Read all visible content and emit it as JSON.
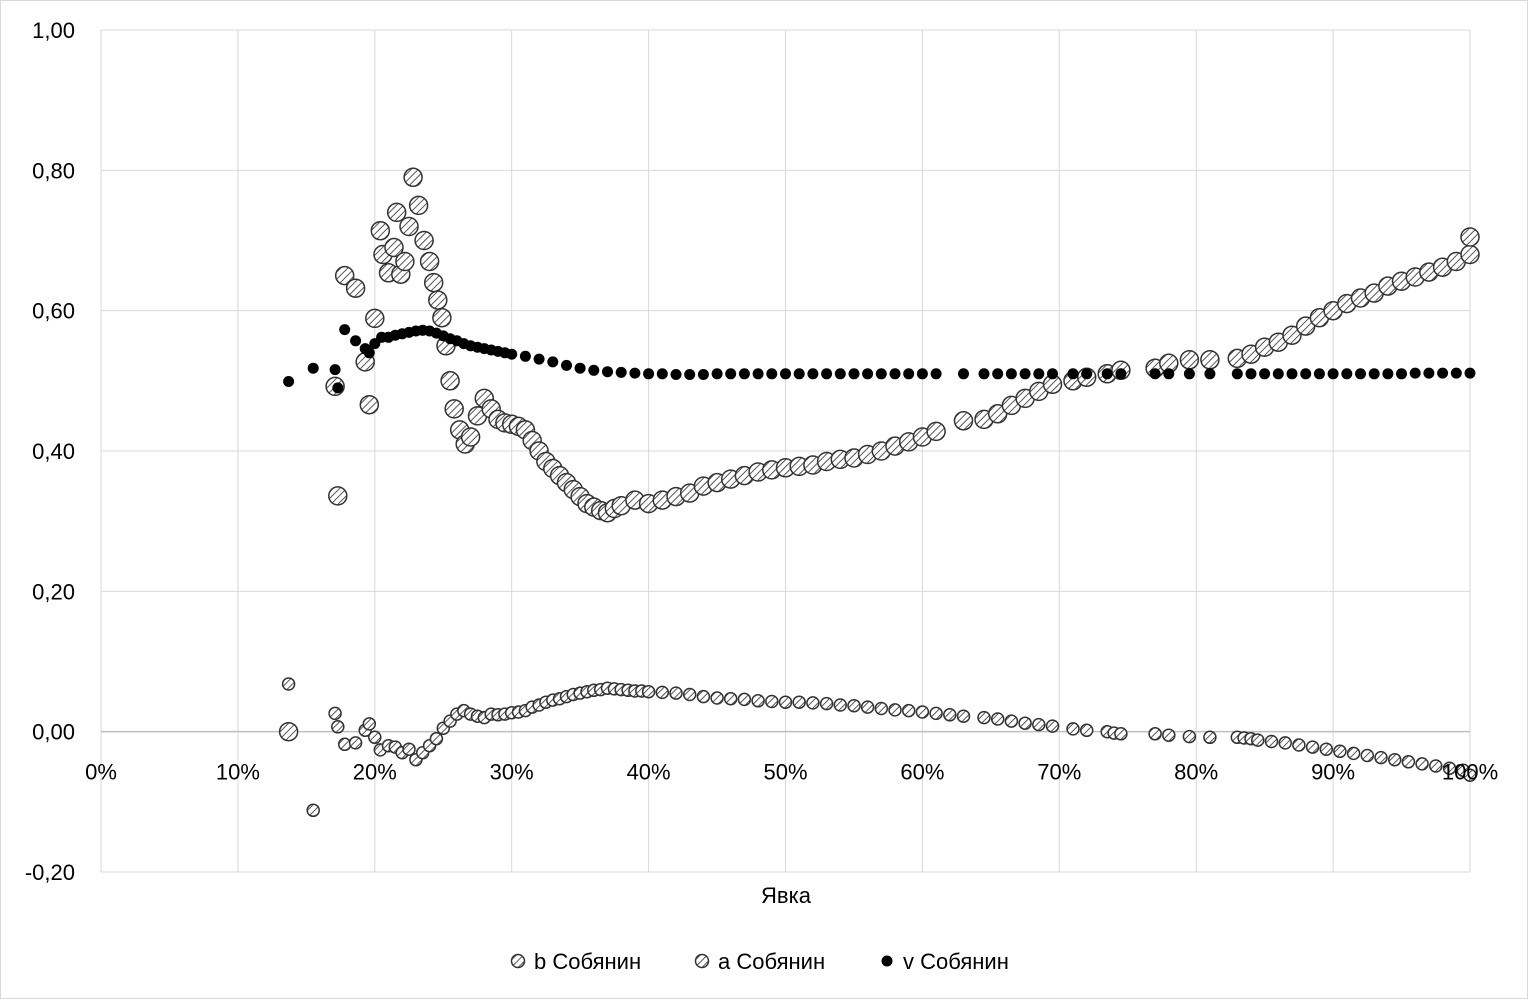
{
  "chart_data": {
    "type": "scatter",
    "title": "",
    "xlabel": "Явка",
    "ylabel": "",
    "xlim": [
      0,
      1
    ],
    "ylim": [
      -0.2,
      1.0
    ],
    "x_ticks": [
      0,
      0.1,
      0.2,
      0.3,
      0.4,
      0.5,
      0.6,
      0.7,
      0.8,
      0.9,
      1.0
    ],
    "x_tick_labels": [
      "0%",
      "10%",
      "20%",
      "30%",
      "40%",
      "50%",
      "60%",
      "70%",
      "80%",
      "90%",
      "100%"
    ],
    "y_ticks": [
      -0.2,
      0,
      0.2,
      0.4,
      0.6,
      0.8,
      1.0
    ],
    "y_tick_labels": [
      "-0,20",
      "0,00",
      "0,20",
      "0,40",
      "0,60",
      "0,80",
      "1,00"
    ],
    "grid": true,
    "legend_position": "bottom",
    "series": [
      {
        "name": "b Собянин",
        "marker": "hatched-small",
        "points": [
          [
            0.137,
            0.068
          ],
          [
            0.155,
            -0.112
          ],
          [
            0.171,
            0.026
          ],
          [
            0.173,
            0.007
          ],
          [
            0.178,
            -0.018
          ],
          [
            0.186,
            -0.016
          ],
          [
            0.193,
            0.002
          ],
          [
            0.196,
            0.011
          ],
          [
            0.2,
            -0.008
          ],
          [
            0.204,
            -0.026
          ],
          [
            0.21,
            -0.02
          ],
          [
            0.215,
            -0.022
          ],
          [
            0.22,
            -0.03
          ],
          [
            0.225,
            -0.025
          ],
          [
            0.23,
            -0.04
          ],
          [
            0.235,
            -0.03
          ],
          [
            0.24,
            -0.02
          ],
          [
            0.245,
            -0.01
          ],
          [
            0.25,
            0.005
          ],
          [
            0.255,
            0.015
          ],
          [
            0.26,
            0.025
          ],
          [
            0.265,
            0.03
          ],
          [
            0.27,
            0.025
          ],
          [
            0.275,
            0.022
          ],
          [
            0.28,
            0.02
          ],
          [
            0.285,
            0.025
          ],
          [
            0.29,
            0.024
          ],
          [
            0.295,
            0.025
          ],
          [
            0.3,
            0.027
          ],
          [
            0.305,
            0.028
          ],
          [
            0.31,
            0.03
          ],
          [
            0.315,
            0.035
          ],
          [
            0.32,
            0.038
          ],
          [
            0.325,
            0.042
          ],
          [
            0.33,
            0.045
          ],
          [
            0.335,
            0.047
          ],
          [
            0.34,
            0.05
          ],
          [
            0.345,
            0.053
          ],
          [
            0.35,
            0.055
          ],
          [
            0.355,
            0.057
          ],
          [
            0.36,
            0.059
          ],
          [
            0.365,
            0.06
          ],
          [
            0.37,
            0.062
          ],
          [
            0.375,
            0.061
          ],
          [
            0.38,
            0.06
          ],
          [
            0.385,
            0.059
          ],
          [
            0.39,
            0.058
          ],
          [
            0.395,
            0.058
          ],
          [
            0.4,
            0.057
          ],
          [
            0.41,
            0.056
          ],
          [
            0.42,
            0.055
          ],
          [
            0.43,
            0.053
          ],
          [
            0.44,
            0.05
          ],
          [
            0.45,
            0.048
          ],
          [
            0.46,
            0.047
          ],
          [
            0.47,
            0.046
          ],
          [
            0.48,
            0.044
          ],
          [
            0.49,
            0.043
          ],
          [
            0.5,
            0.042
          ],
          [
            0.51,
            0.042
          ],
          [
            0.52,
            0.041
          ],
          [
            0.53,
            0.04
          ],
          [
            0.54,
            0.038
          ],
          [
            0.55,
            0.037
          ],
          [
            0.56,
            0.035
          ],
          [
            0.57,
            0.033
          ],
          [
            0.58,
            0.031
          ],
          [
            0.59,
            0.03
          ],
          [
            0.6,
            0.028
          ],
          [
            0.61,
            0.026
          ],
          [
            0.62,
            0.024
          ],
          [
            0.63,
            0.022
          ],
          [
            0.645,
            0.02
          ],
          [
            0.655,
            0.018
          ],
          [
            0.665,
            0.015
          ],
          [
            0.675,
            0.012
          ],
          [
            0.685,
            0.01
          ],
          [
            0.695,
            0.008
          ],
          [
            0.71,
            0.004
          ],
          [
            0.72,
            0.002
          ],
          [
            0.735,
            0.0
          ],
          [
            0.74,
            -0.002
          ],
          [
            0.745,
            -0.003
          ],
          [
            0.77,
            -0.003
          ],
          [
            0.78,
            -0.005
          ],
          [
            0.795,
            -0.007
          ],
          [
            0.81,
            -0.008
          ],
          [
            0.83,
            -0.008
          ],
          [
            0.835,
            -0.009
          ],
          [
            0.84,
            -0.01
          ],
          [
            0.845,
            -0.012
          ],
          [
            0.855,
            -0.014
          ],
          [
            0.865,
            -0.016
          ],
          [
            0.875,
            -0.019
          ],
          [
            0.885,
            -0.022
          ],
          [
            0.895,
            -0.025
          ],
          [
            0.905,
            -0.028
          ],
          [
            0.915,
            -0.031
          ],
          [
            0.925,
            -0.034
          ],
          [
            0.935,
            -0.037
          ],
          [
            0.945,
            -0.04
          ],
          [
            0.955,
            -0.043
          ],
          [
            0.965,
            -0.046
          ],
          [
            0.975,
            -0.049
          ],
          [
            0.985,
            -0.052
          ],
          [
            0.995,
            -0.055
          ],
          [
            1.0,
            -0.062
          ]
        ]
      },
      {
        "name": "a Собянин",
        "marker": "hatched-large",
        "points": [
          [
            0.137,
            0.0
          ],
          [
            0.173,
            0.336
          ],
          [
            0.171,
            0.492
          ],
          [
            0.178,
            0.65
          ],
          [
            0.186,
            0.632
          ],
          [
            0.193,
            0.527
          ],
          [
            0.196,
            0.466
          ],
          [
            0.2,
            0.589
          ],
          [
            0.204,
            0.714
          ],
          [
            0.206,
            0.68
          ],
          [
            0.21,
            0.654
          ],
          [
            0.214,
            0.69
          ],
          [
            0.216,
            0.74
          ],
          [
            0.219,
            0.652
          ],
          [
            0.222,
            0.67
          ],
          [
            0.225,
            0.72
          ],
          [
            0.228,
            0.79
          ],
          [
            0.232,
            0.75
          ],
          [
            0.236,
            0.7
          ],
          [
            0.24,
            0.67
          ],
          [
            0.243,
            0.64
          ],
          [
            0.246,
            0.615
          ],
          [
            0.249,
            0.59
          ],
          [
            0.252,
            0.55
          ],
          [
            0.255,
            0.5
          ],
          [
            0.258,
            0.46
          ],
          [
            0.262,
            0.43
          ],
          [
            0.266,
            0.41
          ],
          [
            0.27,
            0.42
          ],
          [
            0.275,
            0.45
          ],
          [
            0.28,
            0.475
          ],
          [
            0.285,
            0.46
          ],
          [
            0.29,
            0.445
          ],
          [
            0.295,
            0.44
          ],
          [
            0.3,
            0.438
          ],
          [
            0.305,
            0.435
          ],
          [
            0.31,
            0.43
          ],
          [
            0.315,
            0.415
          ],
          [
            0.32,
            0.4
          ],
          [
            0.325,
            0.385
          ],
          [
            0.33,
            0.375
          ],
          [
            0.335,
            0.365
          ],
          [
            0.34,
            0.355
          ],
          [
            0.345,
            0.345
          ],
          [
            0.35,
            0.335
          ],
          [
            0.355,
            0.325
          ],
          [
            0.36,
            0.32
          ],
          [
            0.365,
            0.315
          ],
          [
            0.37,
            0.312
          ],
          [
            0.375,
            0.318
          ],
          [
            0.38,
            0.322
          ],
          [
            0.39,
            0.33
          ],
          [
            0.4,
            0.325
          ],
          [
            0.41,
            0.33
          ],
          [
            0.42,
            0.335
          ],
          [
            0.43,
            0.34
          ],
          [
            0.44,
            0.35
          ],
          [
            0.45,
            0.355
          ],
          [
            0.46,
            0.36
          ],
          [
            0.47,
            0.365
          ],
          [
            0.48,
            0.37
          ],
          [
            0.49,
            0.373
          ],
          [
            0.5,
            0.376
          ],
          [
            0.51,
            0.378
          ],
          [
            0.52,
            0.38
          ],
          [
            0.53,
            0.385
          ],
          [
            0.54,
            0.388
          ],
          [
            0.55,
            0.39
          ],
          [
            0.56,
            0.395
          ],
          [
            0.57,
            0.4
          ],
          [
            0.58,
            0.407
          ],
          [
            0.59,
            0.413
          ],
          [
            0.6,
            0.42
          ],
          [
            0.61,
            0.428
          ],
          [
            0.63,
            0.443
          ],
          [
            0.645,
            0.445
          ],
          [
            0.655,
            0.453
          ],
          [
            0.665,
            0.465
          ],
          [
            0.675,
            0.475
          ],
          [
            0.685,
            0.485
          ],
          [
            0.695,
            0.495
          ],
          [
            0.71,
            0.5
          ],
          [
            0.72,
            0.505
          ],
          [
            0.735,
            0.51
          ],
          [
            0.745,
            0.515
          ],
          [
            0.77,
            0.518
          ],
          [
            0.78,
            0.525
          ],
          [
            0.795,
            0.53
          ],
          [
            0.81,
            0.53
          ],
          [
            0.83,
            0.532
          ],
          [
            0.84,
            0.538
          ],
          [
            0.85,
            0.548
          ],
          [
            0.86,
            0.555
          ],
          [
            0.87,
            0.565
          ],
          [
            0.88,
            0.578
          ],
          [
            0.89,
            0.59
          ],
          [
            0.9,
            0.6
          ],
          [
            0.91,
            0.61
          ],
          [
            0.92,
            0.618
          ],
          [
            0.93,
            0.625
          ],
          [
            0.94,
            0.635
          ],
          [
            0.95,
            0.642
          ],
          [
            0.96,
            0.648
          ],
          [
            0.97,
            0.655
          ],
          [
            0.98,
            0.662
          ],
          [
            0.99,
            0.67
          ],
          [
            1.0,
            0.68
          ],
          [
            1.0,
            0.705
          ]
        ]
      },
      {
        "name": "v Собянин",
        "marker": "filled-dot",
        "points": [
          [
            0.137,
            0.499
          ],
          [
            0.155,
            0.518
          ],
          [
            0.171,
            0.516
          ],
          [
            0.173,
            0.49
          ],
          [
            0.178,
            0.573
          ],
          [
            0.186,
            0.557
          ],
          [
            0.193,
            0.546
          ],
          [
            0.196,
            0.54
          ],
          [
            0.2,
            0.553
          ],
          [
            0.205,
            0.562
          ],
          [
            0.21,
            0.562
          ],
          [
            0.215,
            0.565
          ],
          [
            0.22,
            0.567
          ],
          [
            0.225,
            0.569
          ],
          [
            0.23,
            0.571
          ],
          [
            0.235,
            0.572
          ],
          [
            0.24,
            0.571
          ],
          [
            0.245,
            0.568
          ],
          [
            0.25,
            0.564
          ],
          [
            0.255,
            0.56
          ],
          [
            0.26,
            0.557
          ],
          [
            0.265,
            0.553
          ],
          [
            0.27,
            0.55
          ],
          [
            0.275,
            0.548
          ],
          [
            0.28,
            0.546
          ],
          [
            0.285,
            0.544
          ],
          [
            0.29,
            0.542
          ],
          [
            0.295,
            0.54
          ],
          [
            0.3,
            0.538
          ],
          [
            0.31,
            0.535
          ],
          [
            0.32,
            0.531
          ],
          [
            0.33,
            0.527
          ],
          [
            0.34,
            0.522
          ],
          [
            0.35,
            0.518
          ],
          [
            0.36,
            0.515
          ],
          [
            0.37,
            0.513
          ],
          [
            0.38,
            0.512
          ],
          [
            0.39,
            0.511
          ],
          [
            0.4,
            0.51
          ],
          [
            0.41,
            0.51
          ],
          [
            0.42,
            0.509
          ],
          [
            0.43,
            0.509
          ],
          [
            0.44,
            0.509
          ],
          [
            0.45,
            0.51
          ],
          [
            0.46,
            0.51
          ],
          [
            0.47,
            0.51
          ],
          [
            0.48,
            0.51
          ],
          [
            0.49,
            0.51
          ],
          [
            0.5,
            0.51
          ],
          [
            0.51,
            0.51
          ],
          [
            0.52,
            0.51
          ],
          [
            0.53,
            0.51
          ],
          [
            0.54,
            0.51
          ],
          [
            0.55,
            0.51
          ],
          [
            0.56,
            0.51
          ],
          [
            0.57,
            0.51
          ],
          [
            0.58,
            0.51
          ],
          [
            0.59,
            0.51
          ],
          [
            0.6,
            0.51
          ],
          [
            0.61,
            0.51
          ],
          [
            0.63,
            0.51
          ],
          [
            0.645,
            0.51
          ],
          [
            0.655,
            0.51
          ],
          [
            0.665,
            0.51
          ],
          [
            0.675,
            0.51
          ],
          [
            0.685,
            0.51
          ],
          [
            0.695,
            0.51
          ],
          [
            0.71,
            0.51
          ],
          [
            0.72,
            0.51
          ],
          [
            0.735,
            0.51
          ],
          [
            0.745,
            0.51
          ],
          [
            0.77,
            0.51
          ],
          [
            0.78,
            0.51
          ],
          [
            0.795,
            0.51
          ],
          [
            0.81,
            0.51
          ],
          [
            0.83,
            0.51
          ],
          [
            0.84,
            0.51
          ],
          [
            0.85,
            0.51
          ],
          [
            0.86,
            0.51
          ],
          [
            0.87,
            0.51
          ],
          [
            0.88,
            0.51
          ],
          [
            0.89,
            0.51
          ],
          [
            0.9,
            0.51
          ],
          [
            0.91,
            0.51
          ],
          [
            0.92,
            0.51
          ],
          [
            0.93,
            0.51
          ],
          [
            0.94,
            0.51
          ],
          [
            0.95,
            0.51
          ],
          [
            0.96,
            0.511
          ],
          [
            0.97,
            0.511
          ],
          [
            0.98,
            0.511
          ],
          [
            0.99,
            0.511
          ],
          [
            1.0,
            0.511
          ]
        ]
      }
    ]
  }
}
